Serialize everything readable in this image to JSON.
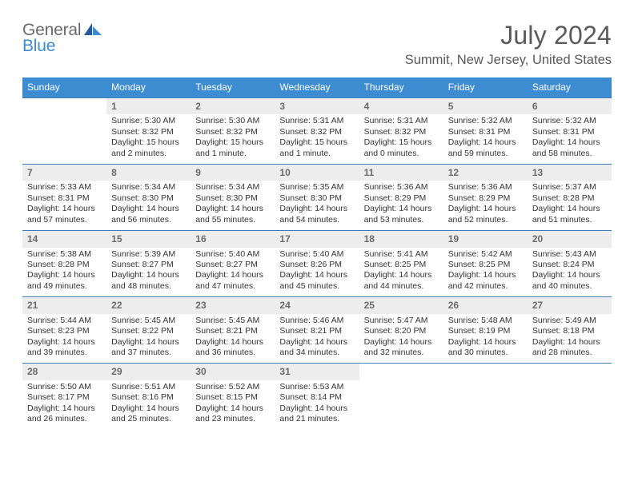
{
  "logo": {
    "word1": "General",
    "word2": "Blue",
    "color_general": "#6b6b6b",
    "color_blue": "#3d8bd0"
  },
  "header": {
    "month_title": "July 2024",
    "location": "Summit, New Jersey, United States"
  },
  "colors": {
    "header_bar": "#3d8bd0",
    "daynum_bg": "#ededed",
    "daynum_border": "#3d7db8",
    "text": "#333333",
    "muted": "#6b6b6b"
  },
  "weekdays": [
    "Sunday",
    "Monday",
    "Tuesday",
    "Wednesday",
    "Thursday",
    "Friday",
    "Saturday"
  ],
  "weeks": [
    [
      {
        "empty": true
      },
      {
        "day": "1",
        "sunrise": "Sunrise: 5:30 AM",
        "sunset": "Sunset: 8:32 PM",
        "daylight1": "Daylight: 15 hours",
        "daylight2": "and 2 minutes."
      },
      {
        "day": "2",
        "sunrise": "Sunrise: 5:30 AM",
        "sunset": "Sunset: 8:32 PM",
        "daylight1": "Daylight: 15 hours",
        "daylight2": "and 1 minute."
      },
      {
        "day": "3",
        "sunrise": "Sunrise: 5:31 AM",
        "sunset": "Sunset: 8:32 PM",
        "daylight1": "Daylight: 15 hours",
        "daylight2": "and 1 minute."
      },
      {
        "day": "4",
        "sunrise": "Sunrise: 5:31 AM",
        "sunset": "Sunset: 8:32 PM",
        "daylight1": "Daylight: 15 hours",
        "daylight2": "and 0 minutes."
      },
      {
        "day": "5",
        "sunrise": "Sunrise: 5:32 AM",
        "sunset": "Sunset: 8:31 PM",
        "daylight1": "Daylight: 14 hours",
        "daylight2": "and 59 minutes."
      },
      {
        "day": "6",
        "sunrise": "Sunrise: 5:32 AM",
        "sunset": "Sunset: 8:31 PM",
        "daylight1": "Daylight: 14 hours",
        "daylight2": "and 58 minutes."
      }
    ],
    [
      {
        "day": "7",
        "sunrise": "Sunrise: 5:33 AM",
        "sunset": "Sunset: 8:31 PM",
        "daylight1": "Daylight: 14 hours",
        "daylight2": "and 57 minutes."
      },
      {
        "day": "8",
        "sunrise": "Sunrise: 5:34 AM",
        "sunset": "Sunset: 8:30 PM",
        "daylight1": "Daylight: 14 hours",
        "daylight2": "and 56 minutes."
      },
      {
        "day": "9",
        "sunrise": "Sunrise: 5:34 AM",
        "sunset": "Sunset: 8:30 PM",
        "daylight1": "Daylight: 14 hours",
        "daylight2": "and 55 minutes."
      },
      {
        "day": "10",
        "sunrise": "Sunrise: 5:35 AM",
        "sunset": "Sunset: 8:30 PM",
        "daylight1": "Daylight: 14 hours",
        "daylight2": "and 54 minutes."
      },
      {
        "day": "11",
        "sunrise": "Sunrise: 5:36 AM",
        "sunset": "Sunset: 8:29 PM",
        "daylight1": "Daylight: 14 hours",
        "daylight2": "and 53 minutes."
      },
      {
        "day": "12",
        "sunrise": "Sunrise: 5:36 AM",
        "sunset": "Sunset: 8:29 PM",
        "daylight1": "Daylight: 14 hours",
        "daylight2": "and 52 minutes."
      },
      {
        "day": "13",
        "sunrise": "Sunrise: 5:37 AM",
        "sunset": "Sunset: 8:28 PM",
        "daylight1": "Daylight: 14 hours",
        "daylight2": "and 51 minutes."
      }
    ],
    [
      {
        "day": "14",
        "sunrise": "Sunrise: 5:38 AM",
        "sunset": "Sunset: 8:28 PM",
        "daylight1": "Daylight: 14 hours",
        "daylight2": "and 49 minutes."
      },
      {
        "day": "15",
        "sunrise": "Sunrise: 5:39 AM",
        "sunset": "Sunset: 8:27 PM",
        "daylight1": "Daylight: 14 hours",
        "daylight2": "and 48 minutes."
      },
      {
        "day": "16",
        "sunrise": "Sunrise: 5:40 AM",
        "sunset": "Sunset: 8:27 PM",
        "daylight1": "Daylight: 14 hours",
        "daylight2": "and 47 minutes."
      },
      {
        "day": "17",
        "sunrise": "Sunrise: 5:40 AM",
        "sunset": "Sunset: 8:26 PM",
        "daylight1": "Daylight: 14 hours",
        "daylight2": "and 45 minutes."
      },
      {
        "day": "18",
        "sunrise": "Sunrise: 5:41 AM",
        "sunset": "Sunset: 8:25 PM",
        "daylight1": "Daylight: 14 hours",
        "daylight2": "and 44 minutes."
      },
      {
        "day": "19",
        "sunrise": "Sunrise: 5:42 AM",
        "sunset": "Sunset: 8:25 PM",
        "daylight1": "Daylight: 14 hours",
        "daylight2": "and 42 minutes."
      },
      {
        "day": "20",
        "sunrise": "Sunrise: 5:43 AM",
        "sunset": "Sunset: 8:24 PM",
        "daylight1": "Daylight: 14 hours",
        "daylight2": "and 40 minutes."
      }
    ],
    [
      {
        "day": "21",
        "sunrise": "Sunrise: 5:44 AM",
        "sunset": "Sunset: 8:23 PM",
        "daylight1": "Daylight: 14 hours",
        "daylight2": "and 39 minutes."
      },
      {
        "day": "22",
        "sunrise": "Sunrise: 5:45 AM",
        "sunset": "Sunset: 8:22 PM",
        "daylight1": "Daylight: 14 hours",
        "daylight2": "and 37 minutes."
      },
      {
        "day": "23",
        "sunrise": "Sunrise: 5:45 AM",
        "sunset": "Sunset: 8:21 PM",
        "daylight1": "Daylight: 14 hours",
        "daylight2": "and 36 minutes."
      },
      {
        "day": "24",
        "sunrise": "Sunrise: 5:46 AM",
        "sunset": "Sunset: 8:21 PM",
        "daylight1": "Daylight: 14 hours",
        "daylight2": "and 34 minutes."
      },
      {
        "day": "25",
        "sunrise": "Sunrise: 5:47 AM",
        "sunset": "Sunset: 8:20 PM",
        "daylight1": "Daylight: 14 hours",
        "daylight2": "and 32 minutes."
      },
      {
        "day": "26",
        "sunrise": "Sunrise: 5:48 AM",
        "sunset": "Sunset: 8:19 PM",
        "daylight1": "Daylight: 14 hours",
        "daylight2": "and 30 minutes."
      },
      {
        "day": "27",
        "sunrise": "Sunrise: 5:49 AM",
        "sunset": "Sunset: 8:18 PM",
        "daylight1": "Daylight: 14 hours",
        "daylight2": "and 28 minutes."
      }
    ],
    [
      {
        "day": "28",
        "sunrise": "Sunrise: 5:50 AM",
        "sunset": "Sunset: 8:17 PM",
        "daylight1": "Daylight: 14 hours",
        "daylight2": "and 26 minutes."
      },
      {
        "day": "29",
        "sunrise": "Sunrise: 5:51 AM",
        "sunset": "Sunset: 8:16 PM",
        "daylight1": "Daylight: 14 hours",
        "daylight2": "and 25 minutes."
      },
      {
        "day": "30",
        "sunrise": "Sunrise: 5:52 AM",
        "sunset": "Sunset: 8:15 PM",
        "daylight1": "Daylight: 14 hours",
        "daylight2": "and 23 minutes."
      },
      {
        "day": "31",
        "sunrise": "Sunrise: 5:53 AM",
        "sunset": "Sunset: 8:14 PM",
        "daylight1": "Daylight: 14 hours",
        "daylight2": "and 21 minutes."
      },
      {
        "empty": true
      },
      {
        "empty": true
      },
      {
        "empty": true
      }
    ]
  ]
}
